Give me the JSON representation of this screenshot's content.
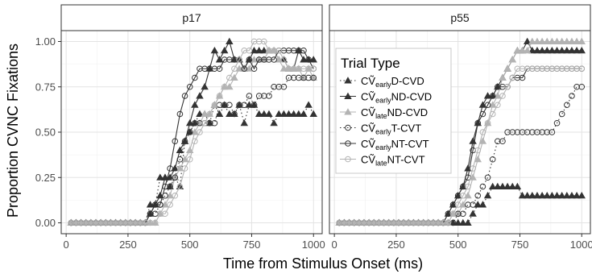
{
  "chart_data": {
    "type": "line",
    "xlabel": "Time from Stimulus Onset (ms)",
    "ylabel": "Proportion CVNC Fixations",
    "xlim": [
      -20,
      1035
    ],
    "ylim": [
      -0.06,
      1.06
    ],
    "x_ticks": [
      0,
      250,
      500,
      750,
      1000
    ],
    "y_ticks": [
      0.0,
      0.25,
      0.5,
      0.75,
      1.0
    ],
    "x_tick_labels": [
      "0",
      "250",
      "500",
      "750",
      "1000"
    ],
    "y_tick_labels": [
      "0.00",
      "0.25",
      "0.50",
      "0.75",
      "1.00"
    ],
    "grid": true,
    "legend": {
      "title": "Trial Type",
      "placement": "inside-right-panel-top-left",
      "entries": [
        {
          "key": "early_d_cvd",
          "pre": "CṼ",
          "sub": "early",
          "post": "D-CVD"
        },
        {
          "key": "early_nd_cvd",
          "pre": "CṼ",
          "sub": "early",
          "post": "ND-CVD"
        },
        {
          "key": "late_nd_cvd",
          "pre": "CṼ",
          "sub": "late",
          "post": "ND-CVD"
        },
        {
          "key": "early_t_cvt",
          "pre": "CṼ",
          "sub": "early",
          "post": "T-CVT"
        },
        {
          "key": "early_nt_cvt",
          "pre": "CṼ",
          "sub": "early",
          "post": "NT-CVT"
        },
        {
          "key": "late_nt_cvt",
          "pre": "CṼ",
          "sub": "late",
          "post": "NT-CVT"
        }
      ]
    },
    "styles": {
      "early_d_cvd": {
        "color": "#333333",
        "marker": "triangle",
        "dash": "1.5,3",
        "fill": true
      },
      "early_nd_cvd": {
        "color": "#333333",
        "marker": "triangle",
        "dash": "",
        "fill": true
      },
      "late_nd_cvd": {
        "color": "#b3b3b3",
        "marker": "triangle",
        "dash": "",
        "fill": true
      },
      "early_t_cvt": {
        "color": "#333333",
        "marker": "circle",
        "dash": "1.5,3",
        "fill": false
      },
      "early_nt_cvt": {
        "color": "#333333",
        "marker": "circle",
        "dash": "",
        "fill": false
      },
      "late_nt_cvt": {
        "color": "#b3b3b3",
        "marker": "circle",
        "dash": "",
        "fill": false
      }
    },
    "x": [
      20,
      40,
      60,
      80,
      100,
      120,
      140,
      160,
      180,
      200,
      220,
      240,
      260,
      280,
      300,
      320,
      340,
      360,
      380,
      400,
      420,
      440,
      460,
      480,
      500,
      520,
      540,
      560,
      580,
      600,
      620,
      640,
      660,
      680,
      700,
      720,
      740,
      760,
      780,
      800,
      820,
      840,
      860,
      880,
      900,
      920,
      940,
      960,
      980,
      1000
    ],
    "panels": [
      {
        "label": "p17",
        "series": [
          {
            "key": "early_d_cvd",
            "values": [
              0,
              0,
              0,
              0,
              0,
              0,
              0,
              0,
              0,
              0,
              0,
              0,
              0,
              0,
              0,
              0,
              0.1,
              0.1,
              0.25,
              0.25,
              0.2,
              0.25,
              0.2,
              0.45,
              0.5,
              0.55,
              0.6,
              0.6,
              0.55,
              0.65,
              0.6,
              0.65,
              0.6,
              0.6,
              0.65,
              0.55,
              0.65,
              0.65,
              0.6,
              0.6,
              0.6,
              0.55,
              0.6,
              0.6,
              0.6,
              0.6,
              0.6,
              0.6,
              0.65,
              0.6
            ]
          },
          {
            "key": "early_nd_cvd",
            "values": [
              0,
              0,
              0,
              0,
              0,
              0,
              0,
              0,
              0,
              0,
              0,
              0,
              0,
              0,
              0,
              0,
              0.05,
              0.1,
              0.15,
              0.25,
              0.25,
              0.3,
              0.4,
              0.45,
              0.55,
              0.65,
              0.7,
              0.75,
              0.85,
              0.95,
              0.9,
              0.95,
              1.0,
              0.9,
              0.9,
              0.85,
              0.9,
              0.95,
              0.95,
              0.95,
              0.95,
              0.95,
              0.9,
              0.9,
              0.85,
              0.85,
              0.95,
              0.9,
              0.9,
              0.9
            ]
          },
          {
            "key": "late_nd_cvd",
            "values": [
              0,
              0,
              0,
              0,
              0,
              0,
              0,
              0,
              0,
              0,
              0,
              0,
              0,
              0,
              0,
              0,
              0,
              0,
              0.05,
              0.1,
              0.15,
              0.25,
              0.3,
              0.35,
              0.4,
              0.5,
              0.55,
              0.6,
              0.6,
              0.65,
              0.7,
              0.75,
              0.75,
              0.8,
              0.85,
              0.85,
              0.85,
              0.9,
              0.9,
              0.9,
              0.95,
              0.95,
              0.9,
              0.85,
              0.85,
              0.85,
              0.85,
              0.8,
              0.85,
              0.8
            ]
          },
          {
            "key": "early_t_cvt",
            "values": [
              0,
              0,
              0,
              0,
              0,
              0,
              0,
              0,
              0,
              0,
              0,
              0,
              0,
              0,
              0,
              0,
              0.05,
              0.05,
              0.1,
              0.15,
              0.2,
              0.25,
              0.35,
              0.45,
              0.5,
              0.55,
              0.55,
              0.55,
              0.55,
              0.55,
              0.65,
              0.65,
              0.65,
              0.6,
              0.65,
              0.65,
              0.7,
              0.65,
              0.7,
              0.7,
              0.7,
              0.75,
              0.75,
              0.75,
              0.8,
              0.8,
              0.8,
              0.8,
              0.8,
              0.8
            ]
          },
          {
            "key": "early_nt_cvt",
            "values": [
              0,
              0,
              0,
              0,
              0,
              0,
              0,
              0,
              0,
              0,
              0,
              0,
              0,
              0,
              0,
              0,
              0.05,
              0.1,
              0.1,
              0.2,
              0.3,
              0.45,
              0.6,
              0.7,
              0.75,
              0.8,
              0.85,
              0.85,
              0.85,
              0.85,
              0.85,
              0.9,
              0.9,
              0.9,
              0.9,
              0.85,
              0.9,
              0.85,
              0.9,
              0.9,
              0.9,
              0.9,
              0.95,
              0.95,
              0.95,
              0.95,
              0.95,
              0.95,
              0.9,
              0.85
            ]
          },
          {
            "key": "late_nt_cvt",
            "values": [
              0,
              0,
              0,
              0,
              0,
              0,
              0,
              0,
              0,
              0,
              0,
              0,
              0,
              0,
              0,
              0,
              0,
              0,
              0.05,
              0.05,
              0.1,
              0.15,
              0.2,
              0.3,
              0.35,
              0.45,
              0.5,
              0.55,
              0.6,
              0.65,
              0.7,
              0.75,
              0.8,
              0.85,
              0.9,
              0.95,
              0.95,
              1.0,
              1.0,
              1.0,
              0.95,
              0.95,
              0.95,
              0.9,
              0.85,
              0.85,
              0.85,
              0.85,
              0.85,
              0.85
            ]
          }
        ]
      },
      {
        "label": "p55",
        "series": [
          {
            "key": "early_d_cvd",
            "values": [
              0,
              0,
              0,
              0,
              0,
              0,
              0,
              0,
              0,
              0,
              0,
              0,
              0,
              0,
              0,
              0,
              0,
              0,
              0,
              0,
              0,
              0,
              0,
              0,
              0,
              0,
              0,
              0.05,
              0.1,
              0.1,
              0.15,
              0.2,
              0.2,
              0.2,
              0.2,
              0.2,
              0.2,
              0.15,
              0.15,
              0.15,
              0.15,
              0.15,
              0.15,
              0.15,
              0.15,
              0.15,
              0.15,
              0.15,
              0.15,
              0.15
            ]
          },
          {
            "key": "early_nd_cvd",
            "values": [
              0,
              0,
              0,
              0,
              0,
              0,
              0,
              0,
              0,
              0,
              0,
              0,
              0,
              0,
              0,
              0,
              0,
              0,
              0,
              0,
              0,
              0,
              0.05,
              0.1,
              0.15,
              0.2,
              0.3,
              0.45,
              0.55,
              0.65,
              0.7,
              0.7,
              0.75,
              0.8,
              0.85,
              0.9,
              0.95,
              0.95,
              1.0,
              0.95,
              0.95,
              0.95,
              0.95,
              0.95,
              0.95,
              0.95,
              0.95,
              0.95,
              0.95,
              0.95
            ]
          },
          {
            "key": "late_nd_cvd",
            "values": [
              0,
              0,
              0,
              0,
              0,
              0,
              0,
              0,
              0,
              0,
              0,
              0,
              0,
              0,
              0,
              0,
              0,
              0,
              0,
              0,
              0,
              0,
              0,
              0.05,
              0.05,
              0.1,
              0.15,
              0.25,
              0.35,
              0.45,
              0.55,
              0.65,
              0.7,
              0.8,
              0.85,
              0.9,
              0.95,
              0.95,
              0.95,
              1.0,
              1.0,
              1.0,
              1.0,
              1.0,
              1.0,
              1.0,
              1.0,
              1.0,
              1.0,
              1.0
            ]
          },
          {
            "key": "early_t_cvt",
            "values": [
              0,
              0,
              0,
              0,
              0,
              0,
              0,
              0,
              0,
              0,
              0,
              0,
              0,
              0,
              0,
              0,
              0,
              0,
              0,
              0,
              0,
              0,
              0,
              0,
              0.05,
              0.05,
              0.1,
              0.1,
              0.15,
              0.2,
              0.25,
              0.35,
              0.45,
              0.45,
              0.5,
              0.5,
              0.5,
              0.5,
              0.5,
              0.5,
              0.5,
              0.5,
              0.5,
              0.5,
              0.55,
              0.6,
              0.65,
              0.7,
              0.75,
              0.75
            ]
          },
          {
            "key": "early_nt_cvt",
            "values": [
              0,
              0,
              0,
              0,
              0,
              0,
              0,
              0,
              0,
              0,
              0,
              0,
              0,
              0,
              0,
              0,
              0,
              0,
              0,
              0,
              0,
              0,
              0.05,
              0.1,
              0.15,
              0.2,
              0.25,
              0.4,
              0.55,
              0.6,
              0.65,
              0.7,
              0.75,
              0.75,
              0.75,
              0.8,
              0.8,
              0.8,
              0.85,
              0.85,
              0.85,
              0.85,
              0.85,
              0.85,
              0.85,
              0.85,
              0.85,
              0.85,
              0.85,
              0.85
            ]
          },
          {
            "key": "late_nt_cvt",
            "values": [
              0,
              0,
              0,
              0,
              0,
              0,
              0,
              0,
              0,
              0,
              0,
              0,
              0,
              0,
              0,
              0,
              0,
              0,
              0,
              0,
              0,
              0,
              0,
              0.05,
              0.1,
              0.15,
              0.2,
              0.3,
              0.4,
              0.5,
              0.55,
              0.6,
              0.65,
              0.7,
              0.75,
              0.8,
              0.85,
              0.85,
              0.85,
              0.85,
              0.85,
              0.85,
              0.85,
              0.85,
              0.85,
              0.85,
              0.85,
              0.85,
              0.85,
              0.85
            ]
          }
        ]
      }
    ]
  }
}
